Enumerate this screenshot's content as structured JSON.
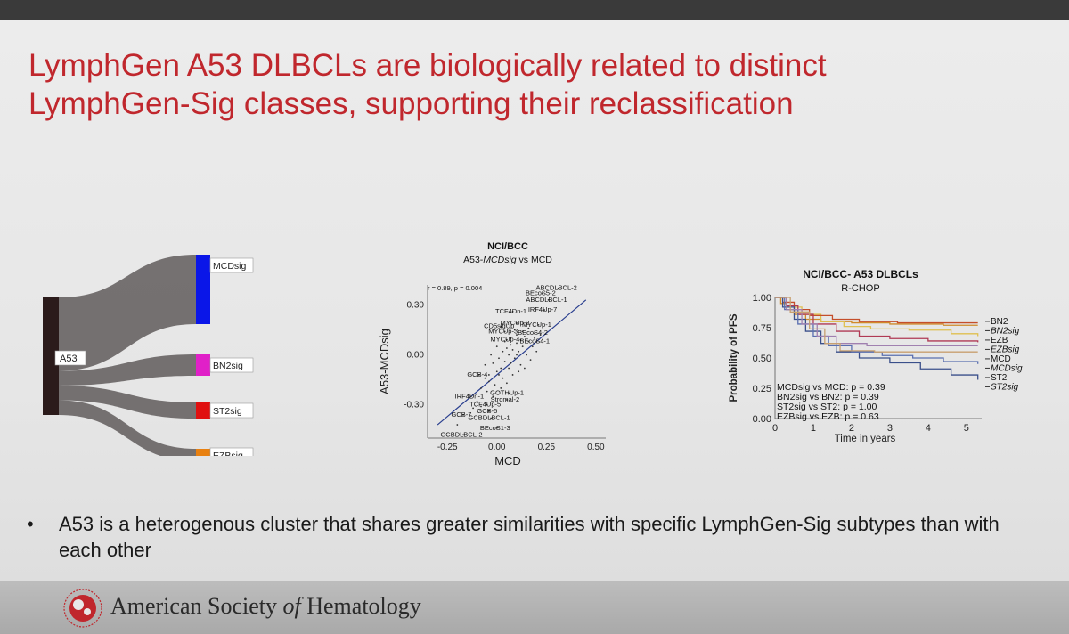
{
  "slide": {
    "title_line1": "LymphGen A53 DLBCLs are biologically related to distinct",
    "title_line2": "LymphGen-Sig classes, supporting their reclassification",
    "bullet_marker": "•",
    "bullet_text": "A53 is a heterogenous cluster that shares greater similarities with specific LymphGen-Sig subtypes than with each other",
    "footer_pre": "American Society ",
    "footer_italic": "of",
    "footer_post": " Hematology",
    "colors": {
      "title": "#c0272d",
      "background": "#e8e8e8",
      "footer": "#b4b4b4"
    }
  },
  "chart_data": [
    {
      "type": "sankey",
      "source": "A53",
      "nodes": [
        {
          "name": "A53",
          "color": "#2b1b1b"
        },
        {
          "name": "MCDsig",
          "color": "#0a16e8"
        },
        {
          "name": "BN2sig",
          "color": "#e020c8"
        },
        {
          "name": "ST2sig",
          "color": "#e01010"
        },
        {
          "name": "EZBsig",
          "color": "#e88010"
        }
      ],
      "links": [
        {
          "from": "A53",
          "to": "MCDsig",
          "value": 5
        },
        {
          "from": "A53",
          "to": "BN2sig",
          "value": 1
        },
        {
          "from": "A53",
          "to": "ST2sig",
          "value": 1
        },
        {
          "from": "A53",
          "to": "EZBsig",
          "value": 1
        }
      ],
      "link_color": "#6a6666"
    },
    {
      "type": "scatter",
      "title": "NCI/BCC",
      "subtitle_pre": "A53-",
      "subtitle_italic": "MCDsig",
      "subtitle_post": " vs MCD",
      "xlabel": "MCD",
      "ylabel": "A53-MCDsig",
      "stat_text": "r = 0.89, p = 0.004",
      "xlim": [
        -0.35,
        0.55
      ],
      "ylim": [
        -0.5,
        0.42
      ],
      "xticks": [
        -0.25,
        0.0,
        0.25,
        0.5
      ],
      "xtick_labels": [
        "-0.25",
        "0.00",
        "0.25",
        "0.50"
      ],
      "yticks": [
        -0.3,
        0.0,
        0.3
      ],
      "ytick_labels": [
        "-0.30",
        "0.00",
        "0.30"
      ],
      "fit_line": [
        [
          -0.3,
          -0.42
        ],
        [
          0.45,
          0.33
        ]
      ],
      "labeled_points": [
        {
          "label": "ABCDLBCL-2",
          "x": 0.31,
          "y": 0.4
        },
        {
          "label": "BEcoS5-2",
          "x": 0.23,
          "y": 0.37
        },
        {
          "label": "ABCDLBCL-1",
          "x": 0.26,
          "y": 0.33
        },
        {
          "label": "IRF4Up-7",
          "x": 0.24,
          "y": 0.27
        },
        {
          "label": "TCF4Dn-1",
          "x": 0.08,
          "y": 0.26
        },
        {
          "label": "MYCUp-2",
          "x": 0.1,
          "y": 0.19
        },
        {
          "label": "CD5sigUp",
          "x": 0.02,
          "y": 0.17
        },
        {
          "label": "MYCUp-3",
          "x": 0.04,
          "y": 0.14
        },
        {
          "label": "MYCUp-4",
          "x": 0.05,
          "y": 0.09
        },
        {
          "label": "MYCUp-1",
          "x": 0.21,
          "y": 0.18
        },
        {
          "label": "BEcoS4-2",
          "x": 0.19,
          "y": 0.13
        },
        {
          "label": "BEcoS4-1",
          "x": 0.2,
          "y": 0.08
        },
        {
          "label": "GCB-4",
          "x": -0.09,
          "y": -0.12
        },
        {
          "label": "GOTHUp-1",
          "x": 0.06,
          "y": -0.23
        },
        {
          "label": "Stromal-2",
          "x": 0.05,
          "y": -0.27
        },
        {
          "label": "IRF4Dn-1",
          "x": -0.13,
          "y": -0.25
        },
        {
          "label": "TCF4Up-5",
          "x": -0.05,
          "y": -0.3
        },
        {
          "label": "GCB-7",
          "x": -0.17,
          "y": -0.36
        },
        {
          "label": "GCB-5",
          "x": -0.04,
          "y": -0.34
        },
        {
          "label": "GCBDLBCL-1",
          "x": -0.03,
          "y": -0.38
        },
        {
          "label": "BEcoS1-3",
          "x": 0.0,
          "y": -0.44
        },
        {
          "label": "GCBDLBCL-2",
          "x": -0.17,
          "y": -0.48
        }
      ],
      "cloud_points": [
        [
          -0.02,
          -0.05
        ],
        [
          0.01,
          -0.02
        ],
        [
          0.03,
          0.02
        ],
        [
          0.05,
          0.04
        ],
        [
          0.07,
          0.06
        ],
        [
          0.04,
          -0.04
        ],
        [
          0.06,
          0.0
        ],
        [
          0.08,
          0.03
        ],
        [
          0.1,
          0.07
        ],
        [
          0.12,
          0.09
        ],
        [
          0.02,
          -0.08
        ],
        [
          0.0,
          -0.1
        ],
        [
          -0.04,
          -0.12
        ],
        [
          -0.06,
          -0.14
        ],
        [
          0.09,
          -0.02
        ],
        [
          0.11,
          0.02
        ],
        [
          0.13,
          0.05
        ],
        [
          0.14,
          0.11
        ],
        [
          0.16,
          0.08
        ],
        [
          0.06,
          -0.08
        ],
        [
          0.03,
          -0.14
        ],
        [
          -0.01,
          -0.18
        ],
        [
          0.05,
          -0.17
        ],
        [
          0.08,
          -0.12
        ],
        [
          0.15,
          0.0
        ],
        [
          0.18,
          0.05
        ],
        [
          0.1,
          0.12
        ],
        [
          0.07,
          0.1
        ],
        [
          -0.08,
          -0.2
        ],
        [
          -0.05,
          -0.22
        ],
        [
          -0.02,
          -0.25
        ],
        [
          0.02,
          -0.2
        ],
        [
          0.12,
          -0.06
        ],
        [
          0.17,
          -0.03
        ],
        [
          0.2,
          0.02
        ],
        [
          -0.1,
          -0.28
        ],
        [
          -0.12,
          -0.32
        ],
        [
          -0.08,
          -0.31
        ],
        [
          0.0,
          0.05
        ],
        [
          -0.03,
          0.0
        ],
        [
          0.04,
          0.08
        ],
        [
          0.09,
          0.15
        ],
        [
          0.13,
          0.14
        ],
        [
          0.19,
          0.1
        ],
        [
          0.22,
          0.12
        ],
        [
          -0.06,
          -0.06
        ],
        [
          0.11,
          -0.1
        ],
        [
          0.14,
          -0.08
        ],
        [
          -0.14,
          -0.38
        ],
        [
          -0.2,
          -0.42
        ],
        [
          0.16,
          0.16
        ],
        [
          0.01,
          -0.12
        ],
        [
          0.07,
          -0.05
        ],
        [
          0.1,
          0.0
        ],
        [
          -0.04,
          -0.16
        ]
      ]
    },
    {
      "type": "line",
      "title": "NCI/BCC- A53 DLBCLs",
      "subtitle": "R-CHOP",
      "xlabel": "Time in years",
      "ylabel": "Probability of PFS",
      "xlim": [
        0,
        5.4
      ],
      "ylim": [
        0,
        1.0
      ],
      "xticks": [
        0,
        1,
        2,
        3,
        4,
        5
      ],
      "yticks": [
        0.0,
        0.25,
        0.5,
        0.75,
        1.0
      ],
      "ytick_labels": [
        "0.00",
        "0.25",
        "0.50",
        "0.75",
        "1.00"
      ],
      "annotations": [
        "MCDsig vs MCD: p = 0.39",
        "BN2sig vs BN2: p = 0.39",
        "ST2sig vs ST2: p = 1.00",
        "EZBsig vs EZB: p = 0.63"
      ],
      "legend_position": "right",
      "series": [
        {
          "name": "BN2",
          "italic": false,
          "color": "#d08a2a",
          "points": [
            [
              0,
              1
            ],
            [
              0.15,
              0.95
            ],
            [
              0.3,
              0.9
            ],
            [
              0.5,
              0.86
            ],
            [
              0.8,
              0.82
            ],
            [
              1.2,
              0.8
            ],
            [
              2,
              0.79
            ],
            [
              3,
              0.78
            ],
            [
              4.4,
              0.77
            ],
            [
              5.3,
              0.77
            ]
          ]
        },
        {
          "name": "BN2sig",
          "italic": true,
          "color": "#e0c050",
          "points": [
            [
              0,
              1
            ],
            [
              0.3,
              0.92
            ],
            [
              0.7,
              0.86
            ],
            [
              1.2,
              0.8
            ],
            [
              1.8,
              0.76
            ],
            [
              2.5,
              0.74
            ],
            [
              3.5,
              0.73
            ],
            [
              4.6,
              0.7
            ],
            [
              5.3,
              0.68
            ]
          ]
        },
        {
          "name": "EZB",
          "italic": false,
          "color": "#c44e2a",
          "points": [
            [
              0,
              1
            ],
            [
              0.2,
              0.96
            ],
            [
              0.5,
              0.9
            ],
            [
              0.9,
              0.85
            ],
            [
              1.5,
              0.82
            ],
            [
              2.2,
              0.8
            ],
            [
              3.2,
              0.79
            ],
            [
              5.3,
              0.79
            ]
          ]
        },
        {
          "name": "EZBsig",
          "italic": true,
          "color": "#b03a55",
          "points": [
            [
              0,
              1
            ],
            [
              0.3,
              0.93
            ],
            [
              0.6,
              0.86
            ],
            [
              1,
              0.78
            ],
            [
              1.6,
              0.72
            ],
            [
              2.2,
              0.68
            ],
            [
              3,
              0.66
            ],
            [
              4,
              0.64
            ],
            [
              5.3,
              0.63
            ]
          ]
        },
        {
          "name": "MCD",
          "italic": false,
          "color": "#3a4f8a",
          "points": [
            [
              0,
              1
            ],
            [
              0.2,
              0.92
            ],
            [
              0.5,
              0.82
            ],
            [
              0.8,
              0.72
            ],
            [
              1.2,
              0.62
            ],
            [
              1.6,
              0.55
            ],
            [
              2.2,
              0.5
            ],
            [
              3,
              0.46
            ],
            [
              3.8,
              0.41
            ],
            [
              4.6,
              0.36
            ],
            [
              5.3,
              0.32
            ]
          ]
        },
        {
          "name": "MCDsig",
          "italic": true,
          "color": "#5a6fb0",
          "points": [
            [
              0,
              1
            ],
            [
              0.25,
              0.9
            ],
            [
              0.6,
              0.78
            ],
            [
              1,
              0.68
            ],
            [
              1.4,
              0.6
            ],
            [
              2,
              0.55
            ],
            [
              2.8,
              0.52
            ],
            [
              3.6,
              0.5
            ],
            [
              4.4,
              0.47
            ],
            [
              5.3,
              0.45
            ]
          ]
        },
        {
          "name": "ST2",
          "italic": false,
          "color": "#a080b0",
          "points": [
            [
              0,
              1
            ],
            [
              0.3,
              0.9
            ],
            [
              0.7,
              0.78
            ],
            [
              1.1,
              0.68
            ],
            [
              1.6,
              0.62
            ],
            [
              2.4,
              0.6
            ],
            [
              5.3,
              0.6
            ]
          ]
        },
        {
          "name": "ST2sig",
          "italic": true,
          "color": "#c8a070",
          "points": [
            [
              0,
              1
            ],
            [
              0.4,
              0.88
            ],
            [
              0.9,
              0.74
            ],
            [
              1.3,
              0.62
            ],
            [
              1.7,
              0.56
            ],
            [
              2.6,
              0.55
            ],
            [
              5.3,
              0.55
            ]
          ]
        }
      ]
    }
  ]
}
